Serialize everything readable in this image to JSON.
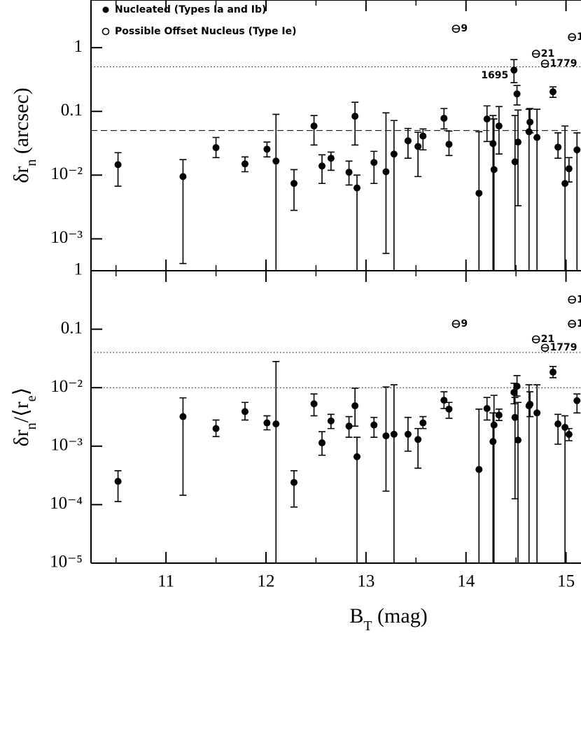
{
  "chart_data": [
    {
      "type": "scatter",
      "ylog": true,
      "ylabel_parts": [
        {
          "text": "δr"
        },
        {
          "text": "n",
          "sub": true
        },
        {
          "text": " (arcsec)"
        }
      ],
      "xlim": [
        10.25,
        15.15
      ],
      "xticks": [
        11,
        12,
        13,
        14,
        15
      ],
      "xminor": [
        10.5,
        11.5,
        12.5,
        13.5,
        14.5
      ],
      "show_xtick_labels": false,
      "ylim": [
        0.000316,
        5.6
      ],
      "yticks": [
        1,
        0.1,
        {
          "value": 0.01,
          "label": "10⁻²"
        },
        {
          "value": 0.001,
          "label": "10⁻³"
        }
      ],
      "hlines": [
        {
          "y": 0.5,
          "style": "dotted"
        },
        {
          "y": 0.05,
          "style": "dashed"
        }
      ],
      "annotation": "1695",
      "legend": "top-left",
      "series": [
        {
          "name": "Nucleated (Types Ia and Ib)",
          "color": "#000000",
          "marker": "filled",
          "x": [
            10.52,
            11.17,
            11.5,
            11.79,
            12.01,
            12.1,
            12.28,
            12.48,
            12.56,
            12.65,
            12.83,
            12.89,
            12.91,
            13.08,
            13.2,
            13.28,
            13.42,
            13.52,
            13.57,
            13.78,
            13.83,
            14.13,
            14.21,
            14.27,
            14.28,
            14.33,
            14.48,
            14.49,
            14.51,
            14.52,
            14.63,
            14.64,
            14.71,
            14.87,
            14.92,
            14.99,
            15.03,
            15.11
          ],
          "values": [
            0.0146,
            0.0095,
            0.027,
            0.015,
            0.0255,
            0.0166,
            0.0074,
            0.059,
            0.0139,
            0.0184,
            0.0111,
            0.084,
            0.0063,
            0.0158,
            0.0113,
            0.0214,
            0.0345,
            0.0282,
            0.041,
            0.078,
            0.0305,
            0.0052,
            0.076,
            0.0313,
            0.0122,
            0.059,
            0.445,
            0.0162,
            0.188,
            0.033,
            0.048,
            0.068,
            0.039,
            0.203,
            0.0275,
            0.0074,
            0.0126,
            0.0249
          ],
          "lo": [
            0.0067,
            0.00041,
            0.0188,
            0.0113,
            0.0193,
            0.0002,
            0.0028,
            0.0297,
            0.0074,
            0.0119,
            0.007,
            0.0297,
            0.0002,
            0.0074,
            0.00059,
            0.0002,
            0.0184,
            0.0095,
            0.0249,
            0.053,
            0.0203,
            0.0002,
            0.0337,
            0.0002,
            0.0002,
            0.0214,
            0.282,
            0.0002,
            0.126,
            0.0033,
            0.0002,
            0.046,
            0.0002,
            0.166,
            0.0184,
            0.0002,
            0.0078,
            0.0002
          ],
          "hi": [
            0.0225,
            0.0175,
            0.039,
            0.0193,
            0.033,
            0.09,
            0.0122,
            0.086,
            0.0208,
            0.023,
            0.0166,
            0.139,
            0.01,
            0.0236,
            0.095,
            0.072,
            0.054,
            0.047,
            0.053,
            0.111,
            0.049,
            0.048,
            0.122,
            0.086,
            0.076,
            0.119,
            0.65,
            0.086,
            0.255,
            0.105,
            0.108,
            0.111,
            0.108,
            0.243,
            0.046,
            0.059,
            0.0188,
            0.046
          ]
        },
        {
          "name": "Possible Offset Nucleus (Type Ie)",
          "color": "#000000",
          "marker": "open",
          "x": [
            13.9,
            14.7,
            14.79,
            15.06
          ],
          "values": [
            1.98,
            0.8,
            0.56,
            1.46
          ],
          "labels": [
            "9",
            "21",
            "1779",
            "1"
          ]
        }
      ]
    },
    {
      "type": "scatter",
      "ylog": true,
      "ylabel_parts": [
        {
          "text": "δr"
        },
        {
          "text": "n",
          "sub": true
        },
        {
          "text": "/⟨r"
        },
        {
          "text": "e",
          "sub": true
        },
        {
          "text": "⟩"
        }
      ],
      "xlabel_parts": [
        {
          "text": "B"
        },
        {
          "text": "T",
          "sub": true
        },
        {
          "text": " (mag)"
        }
      ],
      "xlim": [
        10.25,
        15.15
      ],
      "xticks": [
        11,
        12,
        13,
        14,
        15
      ],
      "xminor": [
        10.5,
        11.5,
        12.5,
        13.5,
        14.5
      ],
      "show_xtick_labels": true,
      "ylim": [
        1e-05,
        1
      ],
      "yticks": [
        1,
        0.1,
        {
          "value": 0.01,
          "label": "10⁻²"
        },
        {
          "value": 0.001,
          "label": "10⁻³"
        },
        {
          "value": 0.0001,
          "label": "10⁻⁴"
        },
        {
          "value": 1e-05,
          "label": "10⁻⁵"
        }
      ],
      "hlines": [
        {
          "y": 0.04,
          "style": "dotted"
        },
        {
          "y": 0.01,
          "style": "dotted"
        }
      ],
      "series": [
        {
          "color": "#000000",
          "marker": "filled",
          "x": [
            10.52,
            11.17,
            11.5,
            11.79,
            12.01,
            12.1,
            12.28,
            12.48,
            12.56,
            12.65,
            12.83,
            12.89,
            12.91,
            13.08,
            13.2,
            13.28,
            13.42,
            13.52,
            13.57,
            13.78,
            13.83,
            14.13,
            14.21,
            14.27,
            14.28,
            14.33,
            14.48,
            14.49,
            14.51,
            14.52,
            14.63,
            14.64,
            14.71,
            14.87,
            14.92,
            14.99,
            15.03,
            15.11
          ],
          "values": [
            0.00025,
            0.0032,
            0.002,
            0.0039,
            0.0025,
            0.0024,
            0.00024,
            0.0053,
            0.00114,
            0.0027,
            0.0022,
            0.0049,
            0.00066,
            0.0023,
            0.0015,
            0.0016,
            0.0016,
            0.0013,
            0.0025,
            0.0061,
            0.0043,
            0.0004,
            0.0044,
            0.0012,
            0.0023,
            0.0034,
            0.0083,
            0.0031,
            0.0106,
            0.00127,
            0.0049,
            0.0052,
            0.0037,
            0.0184,
            0.0024,
            0.0021,
            0.00159,
            0.006
          ],
          "lo": [
            0.000113,
            0.000145,
            0.00146,
            0.0028,
            0.0019,
            1e-06,
            9.1e-05,
            0.0033,
            0.0007,
            0.002,
            0.00142,
            0.0022,
            1e-06,
            0.00142,
            0.00017,
            1e-06,
            0.00082,
            0.00042,
            0.002,
            0.0044,
            0.003,
            1e-06,
            0.0028,
            1e-06,
            1e-06,
            0.00275,
            0.0053,
            0.000126,
            0.0072,
            1e-06,
            1e-06,
            0.0032,
            1e-06,
            0.0148,
            0.00108,
            1e-06,
            0.00124,
            0.0037
          ],
          "hi": [
            0.00038,
            0.0067,
            0.0028,
            0.0056,
            0.0033,
            0.028,
            0.00038,
            0.0078,
            0.00177,
            0.0035,
            0.0032,
            0.0098,
            0.00142,
            0.0031,
            0.0103,
            0.0112,
            0.0031,
            0.002,
            0.0032,
            0.0085,
            0.0056,
            0.0043,
            0.0068,
            0.0037,
            0.0074,
            0.0043,
            0.0119,
            0.0068,
            0.0161,
            0.0056,
            0.0112,
            0.0085,
            0.0112,
            0.023,
            0.0035,
            0.0033,
            0.002,
            0.0078
          ]
        },
        {
          "color": "#000000",
          "marker": "open",
          "x": [
            13.9,
            14.7,
            14.79,
            15.06,
            15.06
          ],
          "values": [
            0.123,
            0.067,
            0.048,
            0.32,
            0.123
          ],
          "labels": [
            "9",
            "21",
            "1779",
            "1",
            "1"
          ]
        }
      ]
    }
  ]
}
